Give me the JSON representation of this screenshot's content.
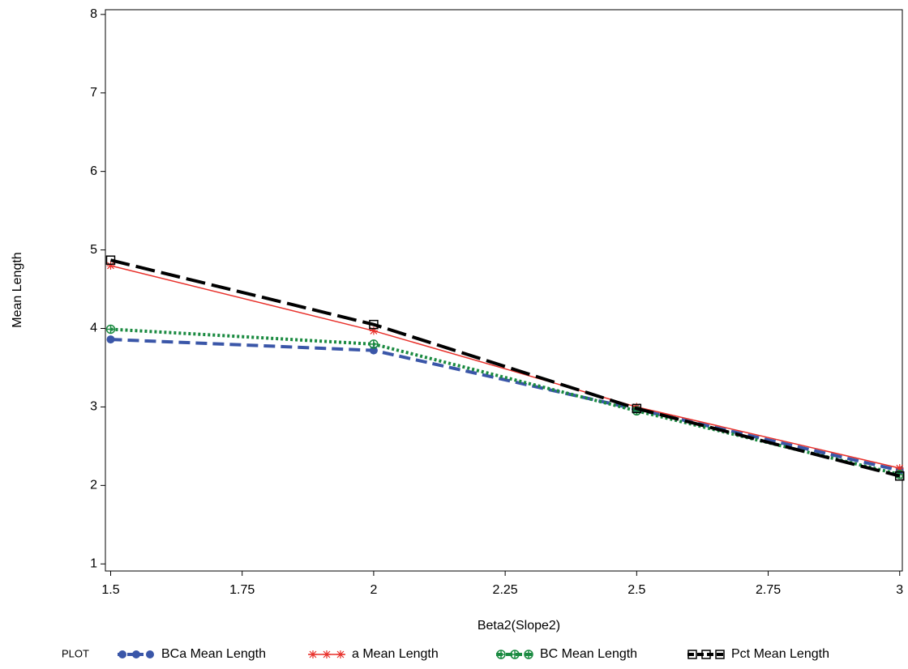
{
  "chart_data": {
    "type": "line",
    "x_label": "Beta2(Slope2)",
    "y_label": "Mean Length",
    "legend_title": "PLOT",
    "x": [
      1.5,
      2,
      2.5,
      3
    ],
    "xlim": [
      1.49,
      3.005
    ],
    "xticks": [
      1.5,
      1.75,
      2,
      2.25,
      2.5,
      2.75,
      3
    ],
    "ylim": [
      0.91,
      8.06
    ],
    "yticks": [
      1,
      2,
      3,
      4,
      5,
      6,
      7,
      8
    ],
    "series": [
      {
        "name": "BCa Mean Length",
        "color": "#3a56a8",
        "dash": "14 7",
        "marker": "dot",
        "values": [
          3.86,
          3.72,
          2.97,
          2.19
        ]
      },
      {
        "name": "a Mean Length",
        "color": "#e8302a",
        "dash": "none",
        "marker": "star",
        "values": [
          4.8,
          3.97,
          3.0,
          2.22
        ]
      },
      {
        "name": "BC Mean Length",
        "color": "#1a8a40",
        "dash": "3 3",
        "marker": "circleplus",
        "values": [
          3.99,
          3.8,
          2.95,
          2.14
        ]
      },
      {
        "name": "Pct Mean Length",
        "color": "#000000",
        "dash": "24 8",
        "marker": "square",
        "values": [
          4.87,
          4.05,
          2.98,
          2.12
        ]
      }
    ]
  }
}
